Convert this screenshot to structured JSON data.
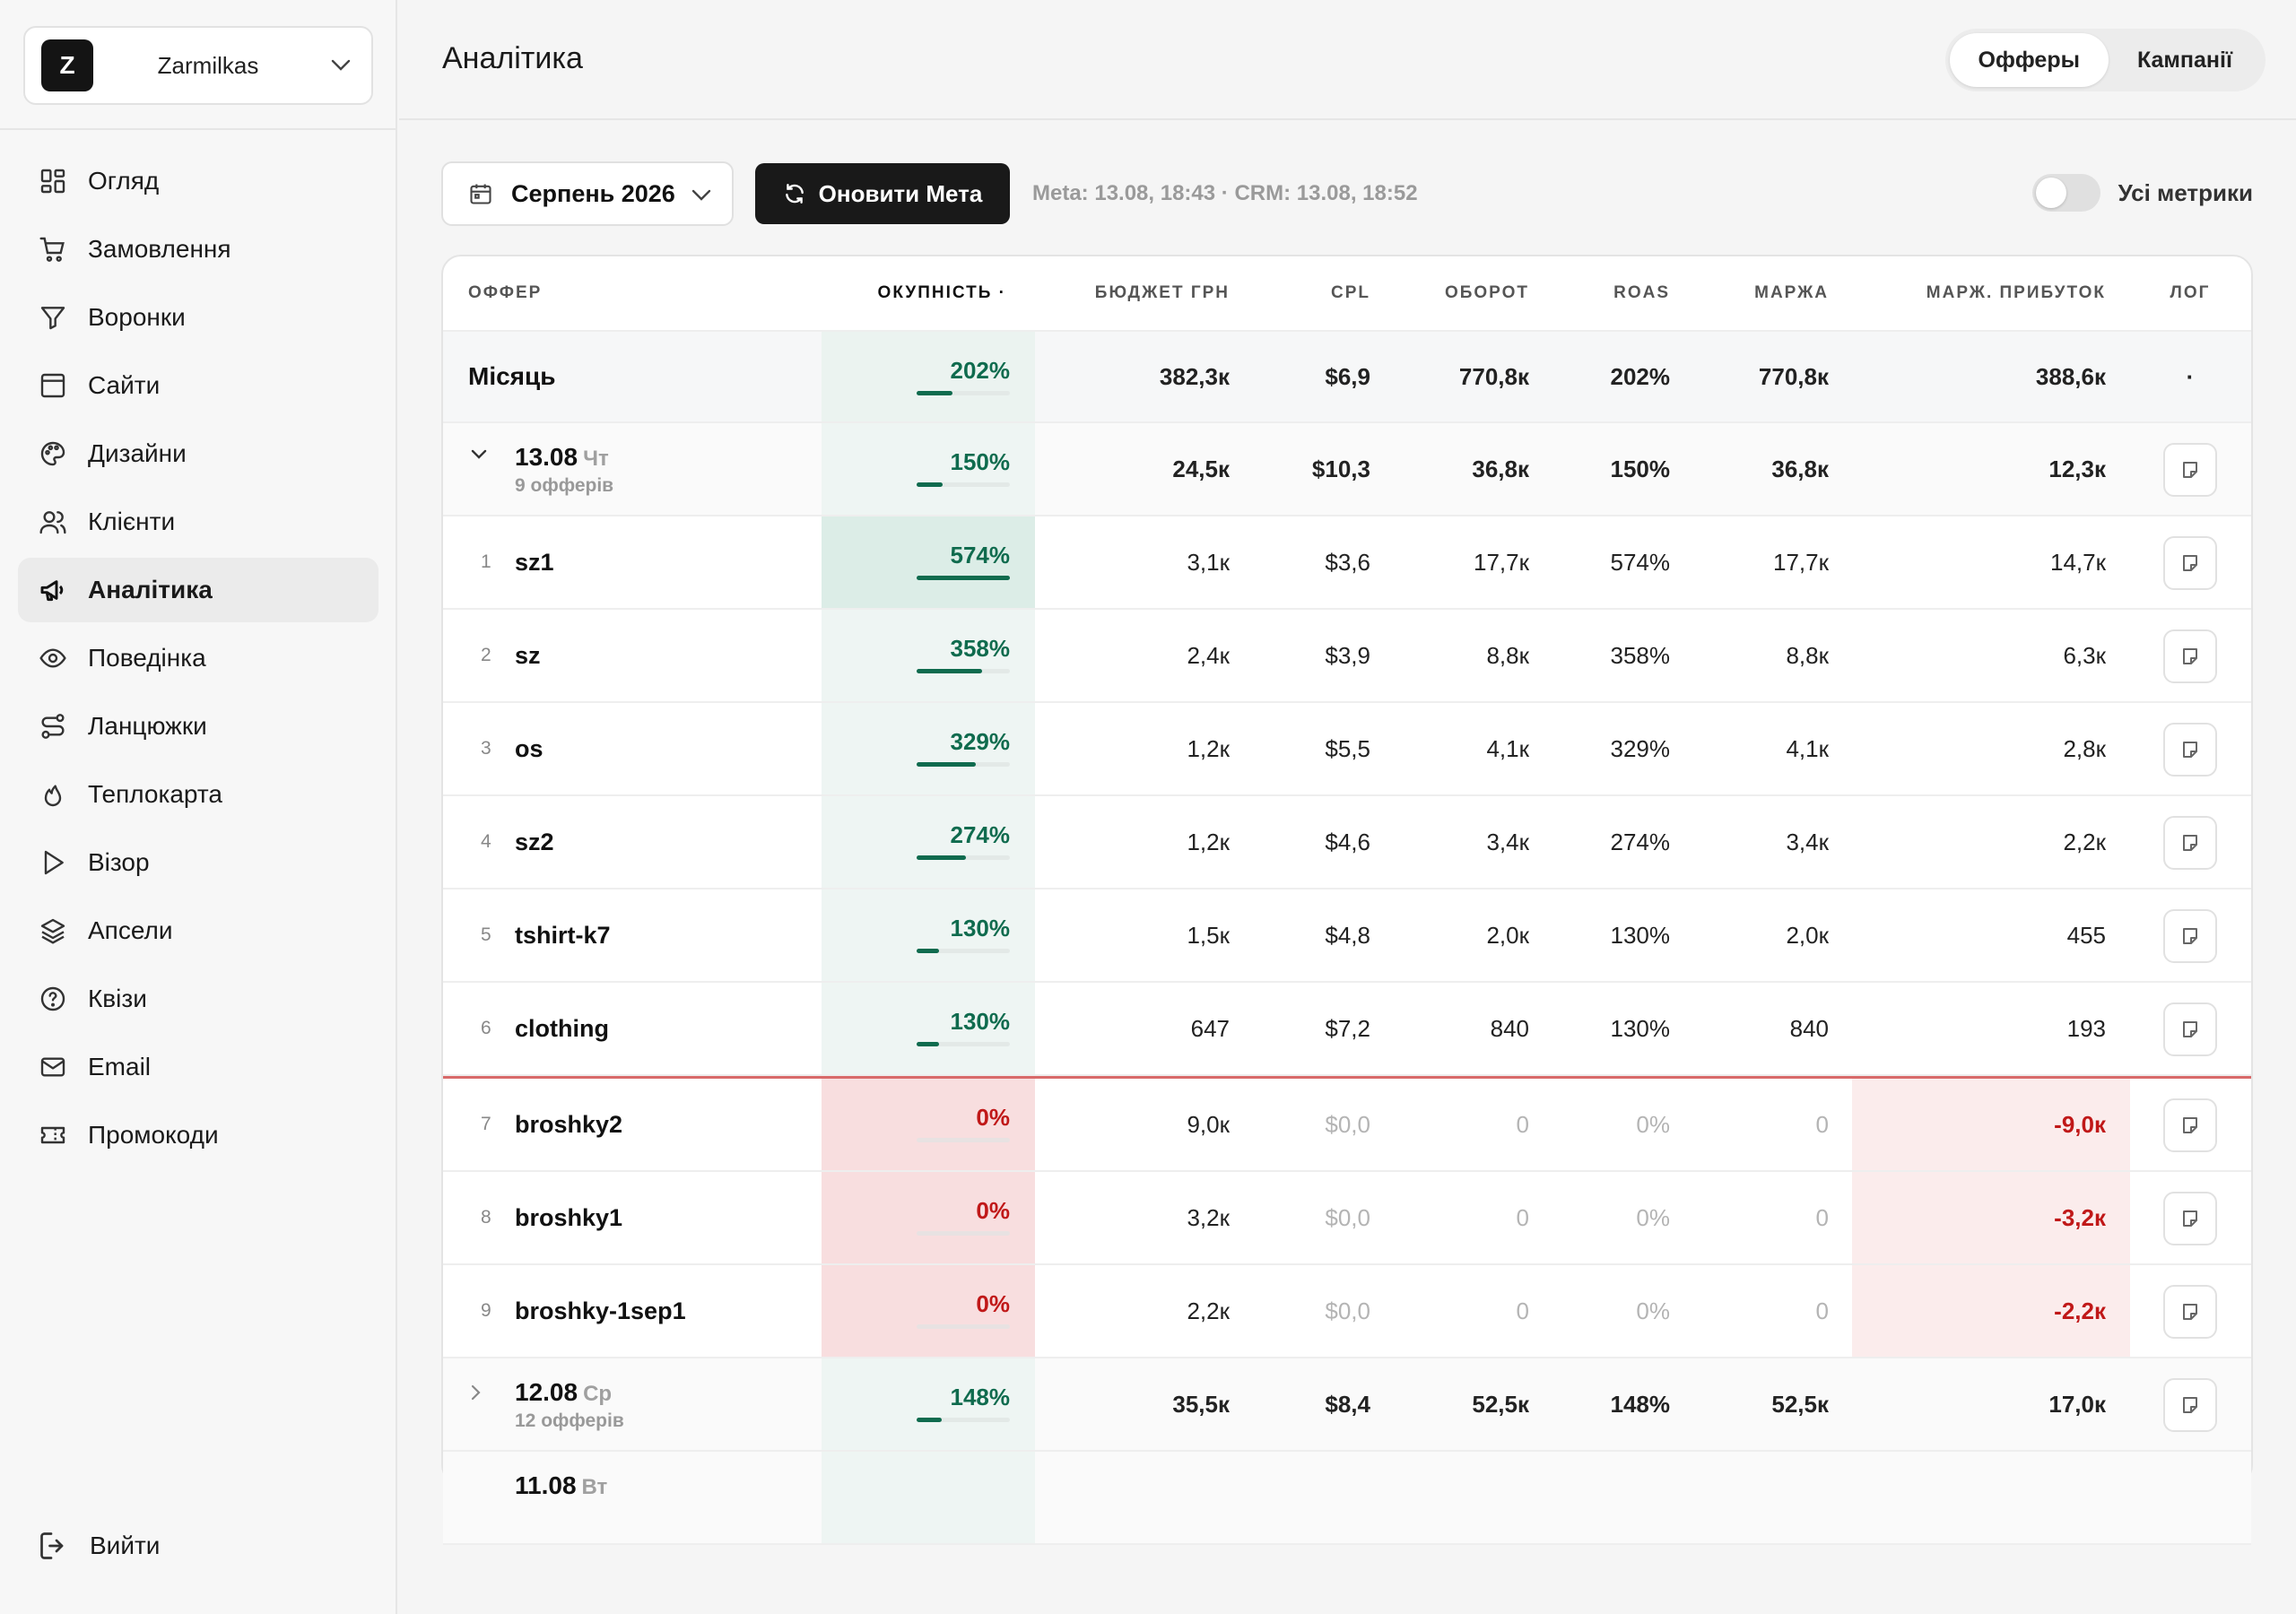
{
  "workspace": {
    "initial": "Z",
    "name": "Zarmilkas"
  },
  "nav": [
    {
      "label": "Огляд",
      "icon": "grid-icon"
    },
    {
      "label": "Замовлення",
      "icon": "cart-icon"
    },
    {
      "label": "Воронки",
      "icon": "funnel-icon"
    },
    {
      "label": "Сайти",
      "icon": "browser-icon"
    },
    {
      "label": "Дизайни",
      "icon": "palette-icon"
    },
    {
      "label": "Клієнти",
      "icon": "users-icon"
    },
    {
      "label": "Аналітика",
      "icon": "megaphone-icon",
      "active": true
    },
    {
      "label": "Поведінка",
      "icon": "eye-icon"
    },
    {
      "label": "Ланцюжки",
      "icon": "route-icon"
    },
    {
      "label": "Теплокарта",
      "icon": "flame-icon"
    },
    {
      "label": "Візор",
      "icon": "play-icon"
    },
    {
      "label": "Апсели",
      "icon": "layers-icon"
    },
    {
      "label": "Квізи",
      "icon": "question-icon"
    },
    {
      "label": "Email",
      "icon": "mail-icon"
    },
    {
      "label": "Промокоди",
      "icon": "ticket-icon"
    }
  ],
  "logout": {
    "label": "Вийти"
  },
  "header": {
    "title": "Аналітика",
    "tabs": [
      {
        "label": "Офферы",
        "active": true
      },
      {
        "label": "Кампанії",
        "active": false
      }
    ]
  },
  "toolbar": {
    "month": "Серпень 2026",
    "refresh": "Оновити Мета",
    "sync": "Meta: 13.08, 18:43 · CRM: 13.08, 18:52",
    "toggle_label": "Усі метрики",
    "toggle_on": false
  },
  "table": {
    "columns": [
      "ОФФЕР",
      "ОКУПНІСТЬ ·",
      "БЮДЖЕТ ГРН",
      "CPL",
      "ОБОРОТ",
      "ROAS",
      "МАРЖА",
      "МАРЖ. ПРИБУТОК",
      "ЛОГ"
    ],
    "month": {
      "label": "Місяць",
      "roi": "202%",
      "roi_fill": 0.38,
      "budget": "382,3к",
      "cpl": "$6,9",
      "turnover": "770,8к",
      "roas": "202%",
      "margin": "770,8к",
      "profit": "388,6к",
      "log": "·"
    },
    "day": {
      "date": "13.08",
      "dow": "Чт",
      "sub": "9 офферів",
      "roi": "150%",
      "roi_fill": 0.28,
      "budget": "24,5к",
      "cpl": "$10,3",
      "turnover": "36,8к",
      "roas": "150%",
      "margin": "36,8к",
      "profit": "12,3к"
    },
    "offers": [
      {
        "n": "1",
        "name": "sz1",
        "roi": "574%",
        "roi_fill": 1.0,
        "budget": "3,1к",
        "cpl": "$3,6",
        "turnover": "17,7к",
        "roas": "574%",
        "margin": "17,7к",
        "profit": "14,7к"
      },
      {
        "n": "2",
        "name": "sz",
        "roi": "358%",
        "roi_fill": 0.7,
        "budget": "2,4к",
        "cpl": "$3,9",
        "turnover": "8,8к",
        "roas": "358%",
        "margin": "8,8к",
        "profit": "6,3к"
      },
      {
        "n": "3",
        "name": "os",
        "roi": "329%",
        "roi_fill": 0.63,
        "budget": "1,2к",
        "cpl": "$5,5",
        "turnover": "4,1к",
        "roas": "329%",
        "margin": "4,1к",
        "profit": "2,8к"
      },
      {
        "n": "4",
        "name": "sz2",
        "roi": "274%",
        "roi_fill": 0.53,
        "budget": "1,2к",
        "cpl": "$4,6",
        "turnover": "3,4к",
        "roas": "274%",
        "margin": "3,4к",
        "profit": "2,2к"
      },
      {
        "n": "5",
        "name": "tshirt-k7",
        "roi": "130%",
        "roi_fill": 0.24,
        "budget": "1,5к",
        "cpl": "$4,8",
        "turnover": "2,0к",
        "roas": "130%",
        "margin": "2,0к",
        "profit": "455"
      },
      {
        "n": "6",
        "name": "clothing",
        "roi": "130%",
        "roi_fill": 0.24,
        "budget": "647",
        "cpl": "$7,2",
        "turnover": "840",
        "roas": "130%",
        "margin": "840",
        "profit": "193"
      },
      {
        "n": "7",
        "name": "broshky2",
        "roi": "0%",
        "roi_fill": 0,
        "budget": "9,0к",
        "cpl": "$0,0",
        "turnover": "0",
        "roas": "0%",
        "margin": "0",
        "profit": "-9,0к",
        "loss": true
      },
      {
        "n": "8",
        "name": "broshky1",
        "roi": "0%",
        "roi_fill": 0,
        "budget": "3,2к",
        "cpl": "$0,0",
        "turnover": "0",
        "roas": "0%",
        "margin": "0",
        "profit": "-3,2к",
        "loss": true
      },
      {
        "n": "9",
        "name": "broshky-1sep1",
        "roi": "0%",
        "roi_fill": 0,
        "budget": "2,2к",
        "cpl": "$0,0",
        "turnover": "0",
        "roas": "0%",
        "margin": "0",
        "profit": "-2,2к",
        "loss": true
      }
    ],
    "day2": {
      "date": "12.08",
      "dow": "Ср",
      "sub": "12 офферів",
      "roi": "148%",
      "roi_fill": 0.27,
      "budget": "35,5к",
      "cpl": "$8,4",
      "turnover": "52,5к",
      "roas": "148%",
      "margin": "52,5к",
      "profit": "17,0к"
    },
    "day3_partial": {
      "date": "11.08",
      "dow": "Вт"
    }
  },
  "colors": {
    "accent_green": "#0f6b4e",
    "loss_red": "#c01818",
    "primary_button": "#191919"
  }
}
